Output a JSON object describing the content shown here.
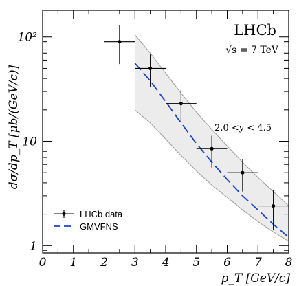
{
  "chart_data": {
    "type": "scatter",
    "title": "LHCb",
    "subtitle": "√s = 7 TeV",
    "annotation": "2.0 <y < 4.5",
    "xlabel": "p_T [GeV/c]",
    "ylabel": "dσ/dp_T [μb/(GeV/c)]",
    "xlim": [
      0,
      8
    ],
    "ylim": [
      0.85,
      180
    ],
    "yscale": "log",
    "xticks": [
      0,
      1,
      2,
      3,
      4,
      5,
      6,
      7,
      8
    ],
    "yticks": [
      {
        "value": 1,
        "label": "1"
      },
      {
        "value": 10,
        "label": "10"
      },
      {
        "value": 100,
        "label": "10²"
      }
    ],
    "grid": false,
    "legend_position": "bottom-left",
    "series": [
      {
        "name": "LHCb data",
        "kind": "points",
        "color": "#000000",
        "points": [
          {
            "x": 2.5,
            "y": 90,
            "xerr": 0.5,
            "ylo": 55,
            "yhi": 130
          },
          {
            "x": 3.5,
            "y": 50,
            "xerr": 0.5,
            "ylo": 33,
            "yhi": 68
          },
          {
            "x": 4.5,
            "y": 23,
            "xerr": 0.5,
            "ylo": 15.5,
            "yhi": 31
          },
          {
            "x": 5.5,
            "y": 8.5,
            "xerr": 0.5,
            "ylo": 5.6,
            "yhi": 11.3
          },
          {
            "x": 6.5,
            "y": 5.0,
            "xerr": 0.5,
            "ylo": 3.3,
            "yhi": 6.7
          },
          {
            "x": 7.5,
            "y": 2.4,
            "xerr": 0.5,
            "ylo": 1.4,
            "yhi": 3.4
          }
        ]
      },
      {
        "name": "GMVFNS",
        "kind": "line",
        "color": "#1a3fd8",
        "dash": true,
        "x": [
          3.0,
          3.5,
          4.0,
          4.5,
          5.0,
          5.5,
          6.0,
          6.5,
          7.0,
          7.5,
          8.0
        ],
        "y": [
          56,
          38,
          24,
          15,
          9.5,
          6.3,
          4.3,
          3.0,
          2.2,
          1.6,
          1.2
        ],
        "band_x": [
          3.0,
          3.5,
          4.0,
          4.5,
          5.0,
          5.5,
          6.0,
          6.5,
          7.0,
          7.5,
          8.0
        ],
        "band_lo": [
          20,
          15,
          10.5,
          7.3,
          5.2,
          3.8,
          2.9,
          2.2,
          1.7,
          1.35,
          1.1
        ],
        "band_hi": [
          105,
          70,
          45,
          29,
          19,
          13,
          9,
          6.3,
          4.5,
          3.3,
          2.4
        ],
        "band_color": "#ececec"
      }
    ]
  }
}
